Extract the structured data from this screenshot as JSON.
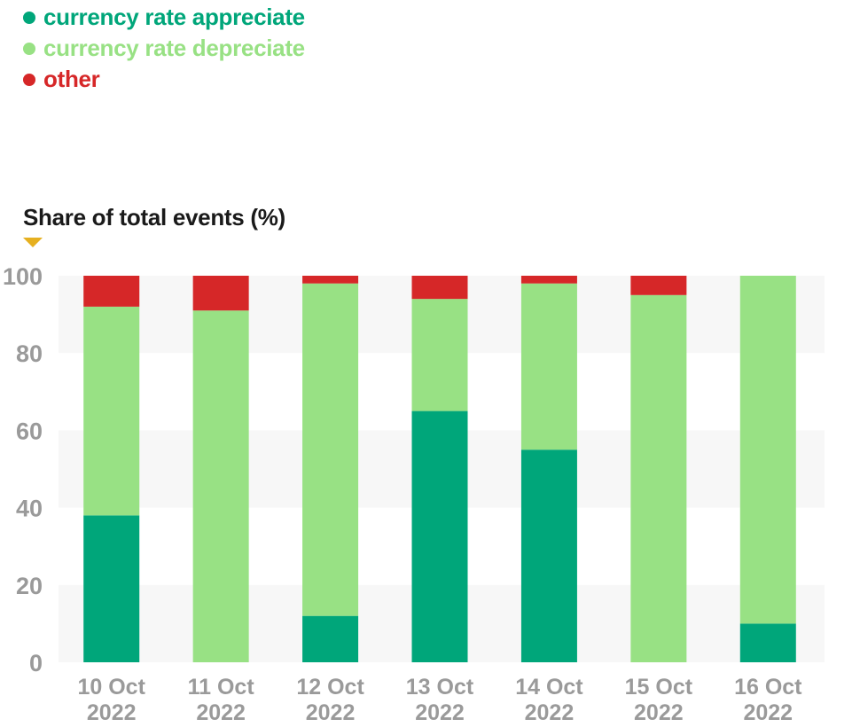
{
  "chart_data": {
    "type": "bar",
    "stacked": true,
    "title": "",
    "xlabel": "",
    "ylabel": "Share of total events (%)",
    "ylim": [
      0,
      100
    ],
    "yticks": [
      "0",
      "20",
      "40",
      "60",
      "80",
      "100"
    ],
    "categories": [
      [
        "10 Oct",
        "2022"
      ],
      [
        "11 Oct",
        "2022"
      ],
      [
        "12 Oct",
        "2022"
      ],
      [
        "13 Oct",
        "2022"
      ],
      [
        "14 Oct",
        "2022"
      ],
      [
        "15 Oct",
        "2022"
      ],
      [
        "16 Oct",
        "2022"
      ]
    ],
    "series": [
      {
        "name": "currency rate appreciate",
        "color": "#00a67a",
        "values": [
          38,
          0,
          12,
          65,
          55,
          0,
          10
        ]
      },
      {
        "name": "currency rate depreciate",
        "color": "#98e184",
        "values": [
          54,
          91,
          86,
          29,
          43,
          95,
          90
        ]
      },
      {
        "name": "other",
        "color": "#d62728",
        "values": [
          8,
          9,
          2,
          6,
          2,
          5,
          0
        ]
      }
    ],
    "legend_position": "top-left",
    "grid": "alternating horizontal bands"
  }
}
